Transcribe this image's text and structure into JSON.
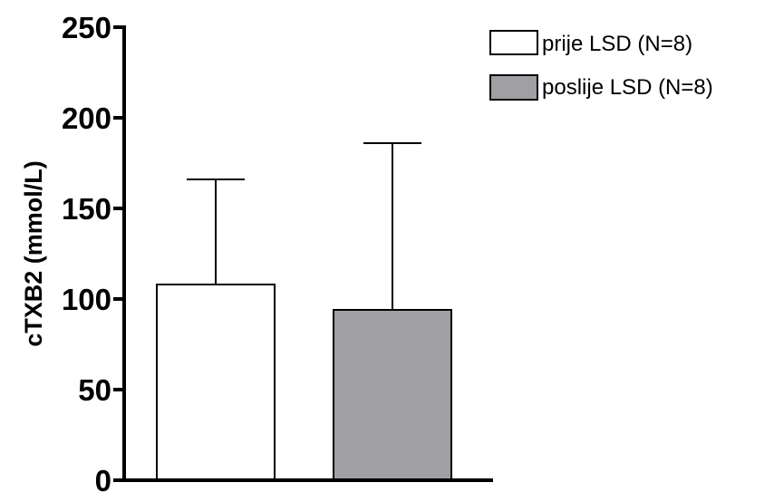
{
  "chart_data": {
    "type": "bar",
    "title": "",
    "xlabel": "",
    "ylabel": "cTXB2 (mmol/L)",
    "ylim": [
      0,
      250
    ],
    "yticks": [
      0,
      50,
      100,
      150,
      200,
      250
    ],
    "grid": false,
    "legend_position": "top-right",
    "series": [
      {
        "name": "prije LSD (N=8)",
        "value": 108,
        "error_upper": 166,
        "color": "#ffffff"
      },
      {
        "name": "poslije LSD (N=8)",
        "value": 94,
        "error_upper": 186,
        "color": "#a0a0a4"
      }
    ]
  }
}
